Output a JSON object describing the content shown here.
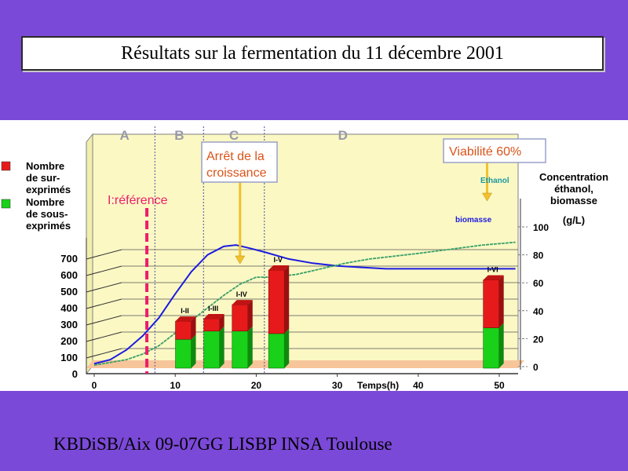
{
  "slide": {
    "title": "Résultats sur la fermentation du 11 décembre 2001",
    "footer": "KBDiSB/Aix 09-07GG LISBP INSA Toulouse"
  },
  "colors": {
    "background": "#7b49d8",
    "plot_background": "#fbf8c4",
    "bar_over": "#e61a1a",
    "bar_under": "#19d119",
    "biomasse": "#1c1ce0",
    "ethanol": "#3aa068",
    "callout_text": "#d9541a",
    "reference_line": "#ee1c6b"
  },
  "chart_data": {
    "type": "bar",
    "xlabel": "Temps(h)",
    "x_ticks": [
      0,
      10,
      20,
      30,
      40,
      50
    ],
    "xlim": [
      0,
      52
    ],
    "y_ticks": [
      0,
      100,
      200,
      300,
      400,
      500,
      600,
      700
    ],
    "ylim": [
      0,
      700
    ],
    "y2label": "Concentration éthanol, biomasse (g/L)",
    "y2_ticks": [
      0,
      20,
      40,
      60,
      80,
      100
    ],
    "y2lim": [
      0,
      100
    ],
    "legend": [
      {
        "label": "Nombre de sur-exprimés",
        "color": "#e61a1a"
      },
      {
        "label": "Nombre de sous-exprimés",
        "color": "#19d119"
      }
    ],
    "phases": [
      {
        "label": "A",
        "start": 0,
        "end": 7.5
      },
      {
        "label": "B",
        "start": 7.5,
        "end": 13.5
      },
      {
        "label": "C",
        "start": 13.5,
        "end": 21
      },
      {
        "label": "D",
        "start": 21,
        "end": 52
      }
    ],
    "reference_time": 6.5,
    "reference_label": "I:référence",
    "bars": [
      {
        "label": "I-II",
        "time": 11,
        "under": 175,
        "over": 110
      },
      {
        "label": "I-III",
        "time": 14.5,
        "under": 225,
        "over": 75
      },
      {
        "label": "I-IV",
        "time": 18,
        "under": 225,
        "over": 160
      },
      {
        "label": "I-V",
        "time": 22.5,
        "under": 210,
        "over": 385
      },
      {
        "label": "I-VI",
        "time": 49,
        "under": 245,
        "over": 290
      }
    ],
    "series": [
      {
        "name": "biomasse",
        "x": [
          0,
          2,
          4,
          6,
          8,
          10,
          12,
          14,
          16,
          17.5,
          19,
          21,
          24,
          27,
          30,
          33,
          36,
          40,
          45,
          52
        ],
        "y": [
          2,
          5,
          12,
          22,
          35,
          52,
          68,
          80,
          86,
          87,
          85,
          82,
          77,
          74,
          72,
          71,
          70,
          70,
          70,
          70
        ]
      },
      {
        "name": "Ethanol",
        "x": [
          0,
          2,
          4,
          6,
          8,
          10,
          12,
          14,
          16,
          18,
          20,
          22,
          25,
          28,
          31,
          34,
          37,
          40,
          44,
          48,
          52
        ],
        "y": [
          1,
          3,
          5,
          9,
          15,
          24,
          33,
          42,
          51,
          59,
          64,
          64,
          66,
          70,
          74,
          77,
          79,
          81,
          84,
          87,
          89
        ]
      }
    ],
    "annotations": [
      {
        "text": "Arrêt de la croissance",
        "time": 18
      },
      {
        "text": "Viabilité 60%",
        "time": 48.5
      }
    ]
  }
}
